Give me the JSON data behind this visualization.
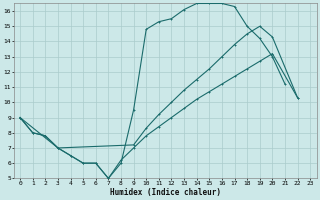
{
  "xlabel": "Humidex (Indice chaleur)",
  "bg_color": "#cce8e8",
  "line_color": "#1a6b6b",
  "grid_color": "#aacccc",
  "xlim": [
    -0.5,
    23.5
  ],
  "ylim": [
    5,
    16.5
  ],
  "xticks": [
    0,
    1,
    2,
    3,
    4,
    5,
    6,
    7,
    8,
    9,
    10,
    11,
    12,
    13,
    14,
    15,
    16,
    17,
    18,
    19,
    20,
    21,
    22,
    23
  ],
  "yticks": [
    5,
    6,
    7,
    8,
    9,
    10,
    11,
    12,
    13,
    14,
    15,
    16
  ],
  "line1_x": [
    0,
    1,
    2,
    3,
    4,
    5,
    6,
    7,
    8,
    9,
    10,
    11,
    12,
    13,
    14,
    15,
    16,
    17,
    18,
    19,
    20,
    21
  ],
  "line1_y": [
    9,
    8,
    7.8,
    7,
    6.5,
    6,
    6,
    5,
    6.0,
    9.5,
    14.8,
    15.3,
    15.5,
    16.1,
    16.5,
    16.5,
    16.5,
    16.3,
    15.0,
    14.2,
    13.0,
    11.2
  ],
  "line2_x": [
    0,
    1,
    2,
    3,
    9,
    10,
    11,
    12,
    13,
    14,
    15,
    16,
    17,
    18,
    19,
    20,
    22
  ],
  "line2_y": [
    9,
    8,
    7.8,
    7,
    7.2,
    8.3,
    9.2,
    10.0,
    10.8,
    11.5,
    12.2,
    13.0,
    13.8,
    14.5,
    15.0,
    14.3,
    10.3
  ],
  "line3_x": [
    0,
    3,
    4,
    5,
    6,
    7,
    8,
    9,
    10,
    11,
    12,
    13,
    14,
    15,
    16,
    17,
    18,
    19,
    20,
    22
  ],
  "line3_y": [
    9,
    7,
    6.5,
    6,
    6,
    5,
    6.2,
    7.0,
    7.8,
    8.4,
    9.0,
    9.6,
    10.2,
    10.7,
    11.2,
    11.7,
    12.2,
    12.7,
    13.2,
    10.3
  ]
}
